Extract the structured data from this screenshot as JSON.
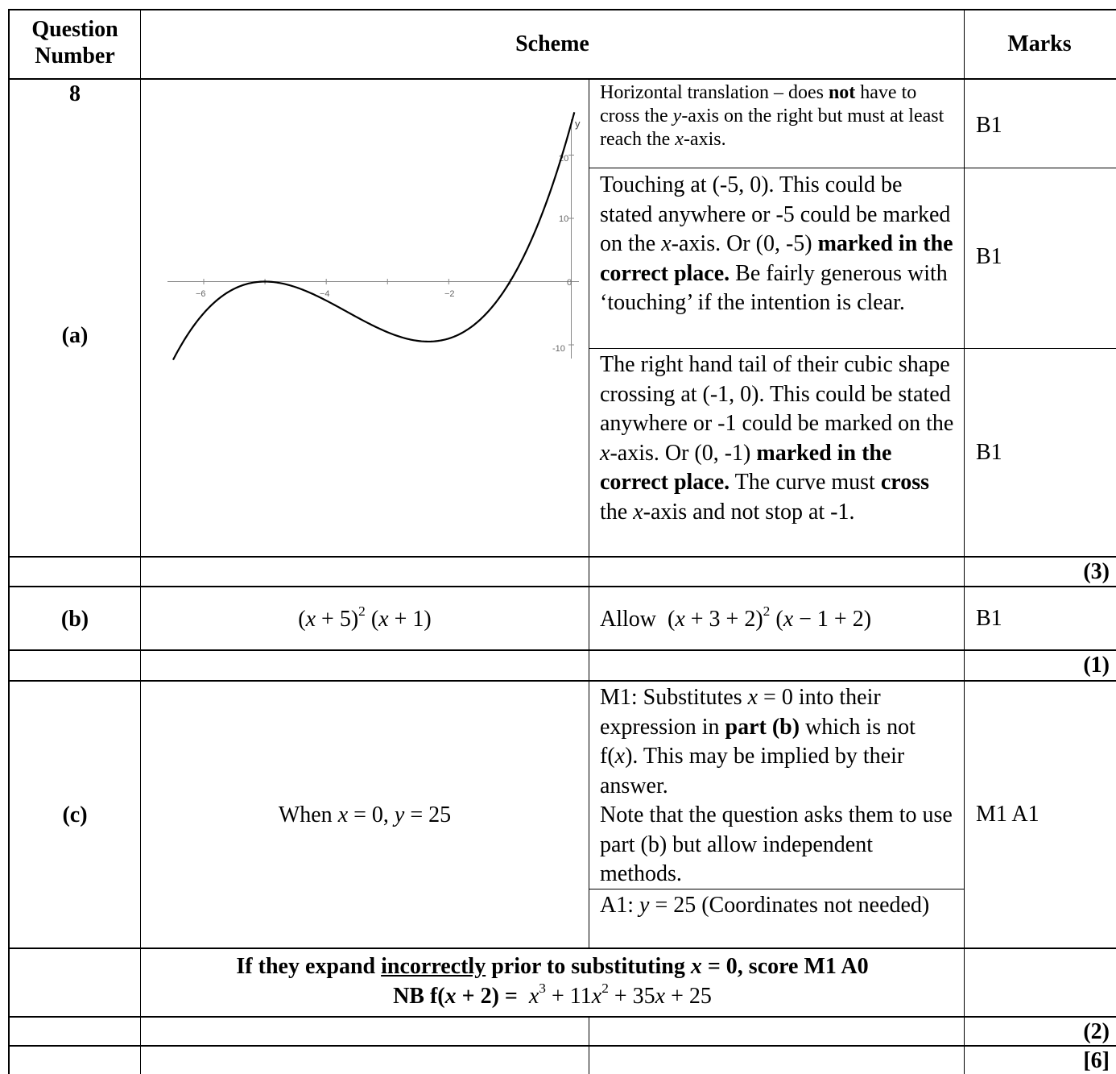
{
  "header": {
    "question_number": "Question Number",
    "scheme": "Scheme",
    "marks": "Marks"
  },
  "question": "8",
  "part_a": {
    "label": "(a)",
    "graph": {
      "y_axis_label": "y",
      "x_ticks": [
        "−6",
        "−4",
        "−2"
      ],
      "y_ticks": [
        "10",
        "-10"
      ],
      "y_tick_20": "20",
      "origin": "0",
      "curve": "y = (x+5)^2 (x+1)",
      "x_range": [
        -6.5,
        0.05
      ],
      "y_range": [
        -11.5,
        25
      ]
    },
    "notes": [
      {
        "pre": "Horizontal translation – does ",
        "bold": "not",
        "post1": " have to cross the ",
        "var1": "y",
        "post2": "-axis on the right but must at least reach the ",
        "var2": "x",
        "post3": "-axis.",
        "mark": "B1"
      },
      {
        "t1": "Touching at (-5, 0). This could be stated anywhere or -5 could be marked on the ",
        "var": "x",
        "t2": "-axis. Or (0, -5) ",
        "bold": "marked in the correct place.",
        "t3": " Be fairly generous with ‘touching’ if the intention is clear.",
        "mark": "B1"
      },
      {
        "t1": "The right hand tail of their cubic shape crossing at (-1, 0). This could be stated anywhere or -1 could be marked on the ",
        "var1": "x",
        "t2": "-axis. Or (0, -1) ",
        "bold1": "marked in the correct place.",
        "t3": " The curve must ",
        "bold2": "cross",
        "t4": " the ",
        "var2": "x",
        "t5": "-axis and not stop at -1.",
        "mark": "B1"
      }
    ],
    "total": "(3)"
  },
  "part_b": {
    "label": "(b)",
    "answer": "(x + 5)^2 (x + 1)",
    "note_prefix": "Allow",
    "note_expr": "(x + 3 + 2)^2 (x − 1 + 2)",
    "mark": "B1",
    "total": "(1)"
  },
  "part_c": {
    "label": "(c)",
    "answer_pre": "When ",
    "answer_var1": "x",
    "answer_mid": " = 0, ",
    "answer_var2": "y",
    "answer_post": " = 25",
    "note1": {
      "t1": "M1: Substitutes ",
      "var": "x",
      "t2": " = 0 into their expression in ",
      "bold": "part (b)",
      "t3": " which is not f(",
      "var2": "x",
      "t4": "). This may be implied by their answer.",
      "t5": "Note that the question asks them to use part (b) but allow independent methods."
    },
    "note2": {
      "t1": "A1: ",
      "var": "y",
      "t2": " = 25 (Coordinates not needed)"
    },
    "mark": "M1 A1",
    "extra_line1_pre": "If they expand ",
    "extra_line1_underline": "incorrectly",
    "extra_line1_mid": " prior to substituting ",
    "extra_line1_var": "x",
    "extra_line1_post": " = 0, score M1 A0",
    "extra_line2_pre": "NB f(",
    "extra_line2_var": "x",
    "extra_line2_mid": " + 2) = ",
    "extra_line2_expr": "x^3 + 11x^2 + 35x + 25",
    "total": "(2)"
  },
  "grand_total": "[6]"
}
